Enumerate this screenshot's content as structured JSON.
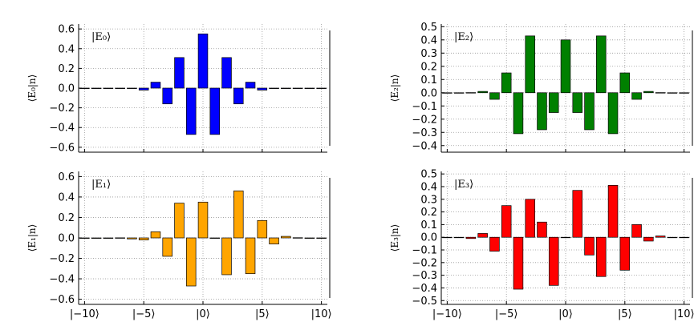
{
  "chart_data": [
    {
      "type": "bar",
      "state_label": "|E₀⟩",
      "ylabel": "⟨E₀|n⟩",
      "color": "#0000ff",
      "ylim": [
        -0.65,
        0.65
      ],
      "yticks": [
        -0.6,
        -0.4,
        -0.2,
        0.0,
        0.2,
        0.4,
        0.6
      ],
      "ytick_labels": [
        "−0.6",
        "−0.4",
        "−0.2",
        "0.0",
        "0.2",
        "0.4",
        "0.6"
      ],
      "xlim": [
        -10.5,
        10.5
      ],
      "xticks": [
        -10,
        -5,
        0,
        5,
        10
      ],
      "xtick_labels": [],
      "x": [
        -10,
        -9,
        -8,
        -7,
        -6,
        -5,
        -4,
        -3,
        -2,
        -1,
        0,
        1,
        2,
        3,
        4,
        5,
        6,
        7,
        8,
        9,
        10
      ],
      "values": [
        0.0,
        0.0,
        0.0,
        0.0,
        -0.002,
        -0.02,
        0.06,
        -0.16,
        0.31,
        -0.47,
        0.55,
        -0.47,
        0.31,
        -0.16,
        0.06,
        -0.02,
        -0.002,
        0.0,
        0.0,
        0.0,
        0.0
      ],
      "grid": true
    },
    {
      "type": "bar",
      "state_label": "|E₂⟩",
      "ylabel": "⟨E₂|n⟩",
      "color": "#008000",
      "ylim": [
        -0.45,
        0.52
      ],
      "yticks": [
        -0.4,
        -0.3,
        -0.2,
        -0.1,
        0.0,
        0.1,
        0.2,
        0.3,
        0.4,
        0.5
      ],
      "ytick_labels": [
        "−0.4",
        "−0.3",
        "−0.2",
        "−0.1",
        "0.0",
        "0.1",
        "0.2",
        "0.3",
        "0.4",
        "0.5"
      ],
      "xlim": [
        -10.5,
        10.5
      ],
      "xticks": [
        -10,
        -5,
        0,
        5,
        10
      ],
      "xtick_labels": [],
      "x": [
        -10,
        -9,
        -8,
        -7,
        -6,
        -5,
        -4,
        -3,
        -2,
        -1,
        0,
        1,
        2,
        3,
        4,
        5,
        6,
        7,
        8,
        9,
        10
      ],
      "values": [
        0.0,
        0.0,
        0.001,
        0.01,
        -0.05,
        0.15,
        -0.31,
        0.43,
        -0.28,
        -0.15,
        0.4,
        -0.15,
        -0.28,
        0.43,
        -0.31,
        0.15,
        -0.05,
        0.01,
        0.001,
        0.0,
        0.0
      ],
      "grid": true
    },
    {
      "type": "bar",
      "state_label": "|E₁⟩",
      "ylabel": "⟨E₁|n⟩",
      "color": "#ffa500",
      "ylim": [
        -0.65,
        0.65
      ],
      "yticks": [
        -0.6,
        -0.4,
        -0.2,
        0.0,
        0.2,
        0.4,
        0.6
      ],
      "ytick_labels": [
        "−0.6",
        "−0.4",
        "−0.2",
        "0.0",
        "0.2",
        "0.4",
        "0.6"
      ],
      "xlim": [
        -10.5,
        10.5
      ],
      "xticks": [
        -10,
        -5,
        0,
        5,
        10
      ],
      "xtick_labels": [
        "|−10⟩",
        "|−5⟩",
        "|0⟩",
        "|5⟩",
        "|10⟩"
      ],
      "x": [
        -10,
        -9,
        -8,
        -7,
        -6,
        -5,
        -4,
        -3,
        -2,
        -1,
        0,
        1,
        2,
        3,
        4,
        5,
        6,
        7,
        8,
        9,
        10
      ],
      "values": [
        0.0,
        0.0,
        0.0,
        0.001,
        -0.01,
        -0.02,
        0.06,
        -0.18,
        0.34,
        -0.47,
        0.35,
        0.0,
        -0.36,
        0.46,
        -0.35,
        0.17,
        -0.06,
        0.015,
        0.002,
        0.0,
        0.0
      ],
      "grid": true
    },
    {
      "type": "bar",
      "state_label": "|E₃⟩",
      "ylabel": "⟨E₃|n⟩",
      "color": "#ff0000",
      "ylim": [
        -0.53,
        0.52
      ],
      "yticks": [
        -0.5,
        -0.4,
        -0.3,
        -0.2,
        -0.1,
        0.0,
        0.1,
        0.2,
        0.3,
        0.4,
        0.5
      ],
      "ytick_labels": [
        "−0.5",
        "−0.4",
        "−0.3",
        "−0.2",
        "−0.1",
        "0.0",
        "0.1",
        "0.2",
        "0.3",
        "0.4",
        "0.5"
      ],
      "xlim": [
        -10.5,
        10.5
      ],
      "xticks": [
        -10,
        -5,
        0,
        5,
        10
      ],
      "xtick_labels": [
        "|−10⟩",
        "|−5⟩",
        "|0⟩",
        "|5⟩",
        "|10⟩"
      ],
      "x": [
        -10,
        -9,
        -8,
        -7,
        -6,
        -5,
        -4,
        -3,
        -2,
        -1,
        0,
        1,
        2,
        3,
        4,
        5,
        6,
        7,
        8,
        9,
        10
      ],
      "values": [
        0.0,
        0.0,
        -0.01,
        0.03,
        -0.11,
        0.25,
        -0.41,
        0.3,
        0.12,
        -0.38,
        0.0,
        0.37,
        -0.14,
        -0.31,
        0.41,
        -0.26,
        0.1,
        -0.03,
        0.01,
        0.0,
        0.0
      ],
      "grid": true
    }
  ]
}
